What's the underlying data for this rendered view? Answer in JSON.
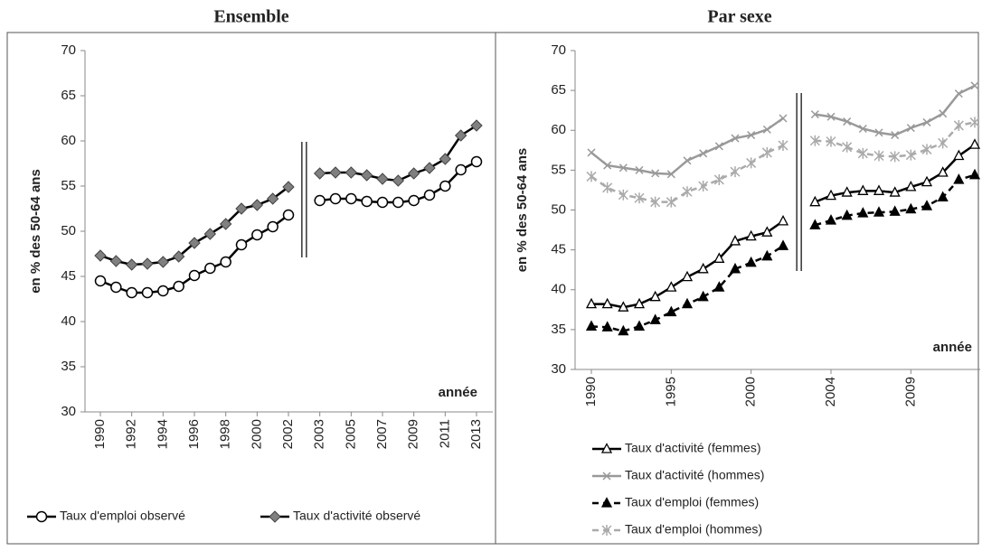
{
  "chart_data": [
    {
      "type": "line",
      "title": "Ensemble",
      "ylabel": "en % des 50-64 ans",
      "xlabel": "année",
      "categories": [
        "1990",
        null,
        "1992",
        null,
        "1994",
        null,
        "1996",
        null,
        "1998",
        null,
        "2000",
        null,
        "2002",
        null,
        "2003",
        null,
        "2005",
        null,
        "2007",
        null,
        "2009",
        null,
        "2011",
        null,
        "2013"
      ],
      "ylim": [
        30,
        70
      ],
      "yticks": [
        30,
        35,
        40,
        45,
        50,
        55,
        60,
        65,
        70
      ],
      "legend": "bottom",
      "series": [
        {
          "name": "Taux d'emploi observé",
          "color": "#000000",
          "marker": "circle",
          "marker_color": "#ffffff",
          "dash": false,
          "values": [
            44.5,
            43.8,
            43.2,
            43.2,
            43.4,
            43.9,
            45.1,
            45.9,
            46.6,
            48.5,
            49.6,
            50.5,
            51.8,
            null,
            53.4,
            53.6,
            53.6,
            53.3,
            53.2,
            53.2,
            53.4,
            54.0,
            55.0,
            56.8,
            57.7
          ]
        },
        {
          "name": "Taux d'activité observé",
          "color": "#000000",
          "marker": "diamond",
          "marker_color": "#808080",
          "dash": false,
          "values": [
            47.3,
            46.7,
            46.3,
            46.4,
            46.6,
            47.2,
            48.7,
            49.7,
            50.8,
            52.5,
            52.9,
            53.6,
            54.9,
            null,
            56.4,
            56.5,
            56.5,
            56.2,
            55.8,
            55.6,
            56.4,
            57.0,
            58.0,
            60.6,
            61.7
          ]
        }
      ]
    },
    {
      "type": "line",
      "title": "Par sexe",
      "ylabel": "en % des 50-64 ans",
      "xlabel": "année",
      "categories": [
        "1990",
        null,
        null,
        null,
        null,
        "1995",
        null,
        null,
        null,
        null,
        "2000",
        null,
        null,
        null,
        null,
        "2004",
        null,
        null,
        null,
        null,
        "2009",
        null,
        null,
        null,
        null
      ],
      "ylim": [
        30,
        70
      ],
      "yticks": [
        30,
        35,
        40,
        45,
        50,
        55,
        60,
        65,
        70
      ],
      "legend": "bottom",
      "series": [
        {
          "name": "Taux d'activité (femmes)",
          "color": "#000000",
          "marker": "triangle",
          "marker_color": "#ffffff",
          "dash": false,
          "values": [
            38.2,
            38.2,
            37.8,
            38.2,
            39.1,
            40.3,
            41.6,
            42.6,
            43.9,
            46.1,
            46.7,
            47.2,
            48.6,
            null,
            51.0,
            51.8,
            52.2,
            52.4,
            52.4,
            52.2,
            52.9,
            53.5,
            54.7,
            56.8,
            58.2
          ]
        },
        {
          "name": "Taux d'activité (hommes)",
          "color": "#999999",
          "marker": "x",
          "marker_color": "#999999",
          "dash": false,
          "values": [
            57.2,
            55.6,
            55.3,
            55.0,
            54.6,
            54.5,
            56.2,
            57.1,
            58.0,
            59.0,
            59.4,
            60.1,
            61.5,
            null,
            62.0,
            61.7,
            61.1,
            60.2,
            59.7,
            59.4,
            60.3,
            61.0,
            62.1,
            64.6,
            65.6
          ]
        },
        {
          "name": "Taux d'emploi (femmes)",
          "color": "#000000",
          "marker": "triangle",
          "marker_color": "#000000",
          "dash": true,
          "values": [
            35.4,
            35.3,
            34.8,
            35.4,
            36.2,
            37.2,
            38.2,
            39.1,
            40.3,
            42.6,
            43.4,
            44.2,
            45.5,
            null,
            48.1,
            48.7,
            49.3,
            49.6,
            49.7,
            49.8,
            50.1,
            50.5,
            51.6,
            53.8,
            54.4
          ]
        },
        {
          "name": "Taux d'emploi (hommes)",
          "color": "#aaaaaa",
          "marker": "asterisk",
          "marker_color": "#aaaaaa",
          "dash": true,
          "values": [
            54.2,
            52.8,
            51.9,
            51.5,
            51.0,
            51.0,
            52.3,
            53.0,
            53.8,
            54.8,
            55.9,
            57.2,
            58.1,
            null,
            58.7,
            58.6,
            57.9,
            57.1,
            56.8,
            56.7,
            56.9,
            57.6,
            58.4,
            60.6,
            61.0
          ]
        }
      ]
    }
  ]
}
